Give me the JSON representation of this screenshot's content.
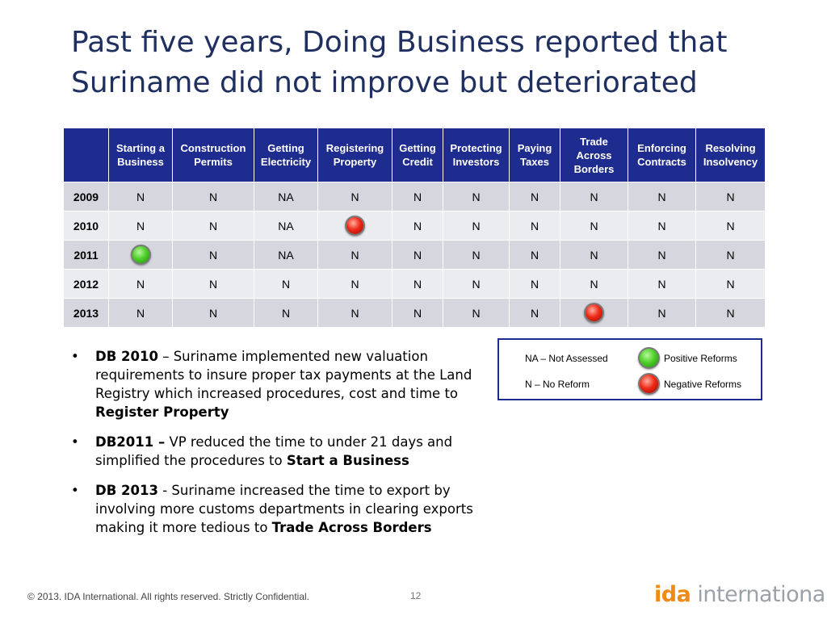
{
  "title": {
    "line1": "Past five years, Doing Business reported that",
    "line2": "Suriname did not improve but deteriorated"
  },
  "table": {
    "corner": "",
    "columns": [
      [
        "Starting a",
        "Business"
      ],
      [
        "Construction",
        "Permits"
      ],
      [
        "Getting",
        "Electricity"
      ],
      [
        "Registering",
        "Property"
      ],
      [
        "Getting",
        "Credit"
      ],
      [
        "Protecting",
        "Investors"
      ],
      [
        "Paying",
        "Taxes"
      ],
      [
        "Trade",
        "Across",
        "Borders"
      ],
      [
        "Enforcing",
        "Contracts"
      ],
      [
        "Resolving",
        "Insolvency"
      ]
    ],
    "rows": [
      {
        "year": "2009",
        "cells": [
          "N",
          "N",
          "NA",
          "N",
          "N",
          "N",
          "N",
          "N",
          "N",
          "N"
        ]
      },
      {
        "year": "2010",
        "cells": [
          "N",
          "N",
          "NA",
          "negative",
          "N",
          "N",
          "N",
          "N",
          "N",
          "N"
        ]
      },
      {
        "year": "2011",
        "cells": [
          "positive",
          "N",
          "NA",
          "N",
          "N",
          "N",
          "N",
          "N",
          "N",
          "N"
        ]
      },
      {
        "year": "2012",
        "cells": [
          "N",
          "N",
          "N",
          "N",
          "N",
          "N",
          "N",
          "N",
          "N",
          "N"
        ]
      },
      {
        "year": "2013",
        "cells": [
          "N",
          "N",
          "N",
          "N",
          "N",
          "N",
          "N",
          "negative",
          "N",
          "N"
        ]
      }
    ],
    "colors": {
      "header_bg": "#1f2c8f",
      "row_dark": "#d5d6de",
      "row_light": "#ebecf0"
    }
  },
  "bullets": [
    {
      "mark": "•",
      "bold_lead": "DB 2010",
      "text": " – Suriname implemented new valuation requirements to insure proper tax payments at the Land Registry which increased procedures, cost and time to ",
      "bold_tail": "Register Property"
    },
    {
      "mark": "•",
      "bold_lead": "DB2011 –",
      "text": " VP reduced the time to under 21 days and simplified the procedures to ",
      "bold_tail": "Start a Business"
    },
    {
      "mark": "•",
      "bold_lead": "DB 2013",
      "text": " - Suriname increased the time to export by involving more customs departments in clearing exports making it more tedious to ",
      "bold_tail": "Trade Across Borders"
    }
  ],
  "legend": {
    "na": "NA – Not Assessed",
    "n": "N – No Reform",
    "positive": "Positive Reforms",
    "negative": "Negative Reforms"
  },
  "footer": {
    "copyright": "© 2013. IDA International.  All rights reserved.  Strictly Confidential.",
    "page": "12"
  },
  "logo": {
    "part1": "ida",
    "part2": " international",
    "colors": {
      "ida": "#f08a16",
      "international": "#9aa1a8"
    }
  }
}
